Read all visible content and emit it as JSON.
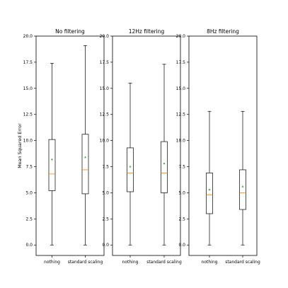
{
  "chart_data": [
    {
      "type": "box",
      "title": "No filtering",
      "ylabel": "Mean Squared Error",
      "ylim": [
        -1,
        20
      ],
      "yticks": [
        "0.0",
        "2.5",
        "5.0",
        "7.5",
        "10.0",
        "12.5",
        "15.0",
        "17.5",
        "20.0"
      ],
      "categories": [
        "nothing",
        "standard scaling"
      ],
      "boxes": [
        {
          "whisker_low": 0.0,
          "q1": 5.2,
          "median": 6.8,
          "q3": 10.1,
          "whisker_high": 17.4,
          "mean": 8.2
        },
        {
          "whisker_low": 0.0,
          "q1": 4.9,
          "median": 7.2,
          "q3": 10.6,
          "whisker_high": 19.1,
          "mean": 8.4
        }
      ]
    },
    {
      "type": "box",
      "title": "12Hz filtering",
      "ylabel": "",
      "ylim": [
        -1,
        20
      ],
      "yticks": [
        "0.0",
        "2.5",
        "5.0",
        "7.5",
        "10.0",
        "12.5",
        "15.0",
        "17.5",
        "20.0"
      ],
      "categories": [
        "nothing",
        "standard scaling"
      ],
      "boxes": [
        {
          "whisker_low": 0.0,
          "q1": 5.1,
          "median": 6.9,
          "q3": 9.3,
          "whisker_high": 15.5,
          "mean": 7.5
        },
        {
          "whisker_low": 0.0,
          "q1": 5.0,
          "median": 6.9,
          "q3": 9.9,
          "whisker_high": 17.3,
          "mean": 7.8
        }
      ]
    },
    {
      "type": "box",
      "title": "8Hz filtering",
      "ylabel": "",
      "ylim": [
        -1,
        20
      ],
      "yticks": [
        "0.0",
        "2.5",
        "5.0",
        "7.5",
        "10.0",
        "12.5",
        "15.0",
        "17.5",
        "20.0"
      ],
      "categories": [
        "nothing",
        "standard scaling"
      ],
      "boxes": [
        {
          "whisker_low": 0.0,
          "q1": 3.0,
          "median": 4.8,
          "q3": 6.9,
          "whisker_high": 12.8,
          "mean": 5.3
        },
        {
          "whisker_low": 0.0,
          "q1": 3.4,
          "median": 5.0,
          "q3": 7.2,
          "whisker_high": 12.8,
          "mean": 5.6
        }
      ]
    }
  ],
  "colors": {
    "box": "#000000",
    "median": "#ff7f0e",
    "mean": "#2ca02c",
    "frame": "#000000",
    "background": "#ffffff"
  }
}
